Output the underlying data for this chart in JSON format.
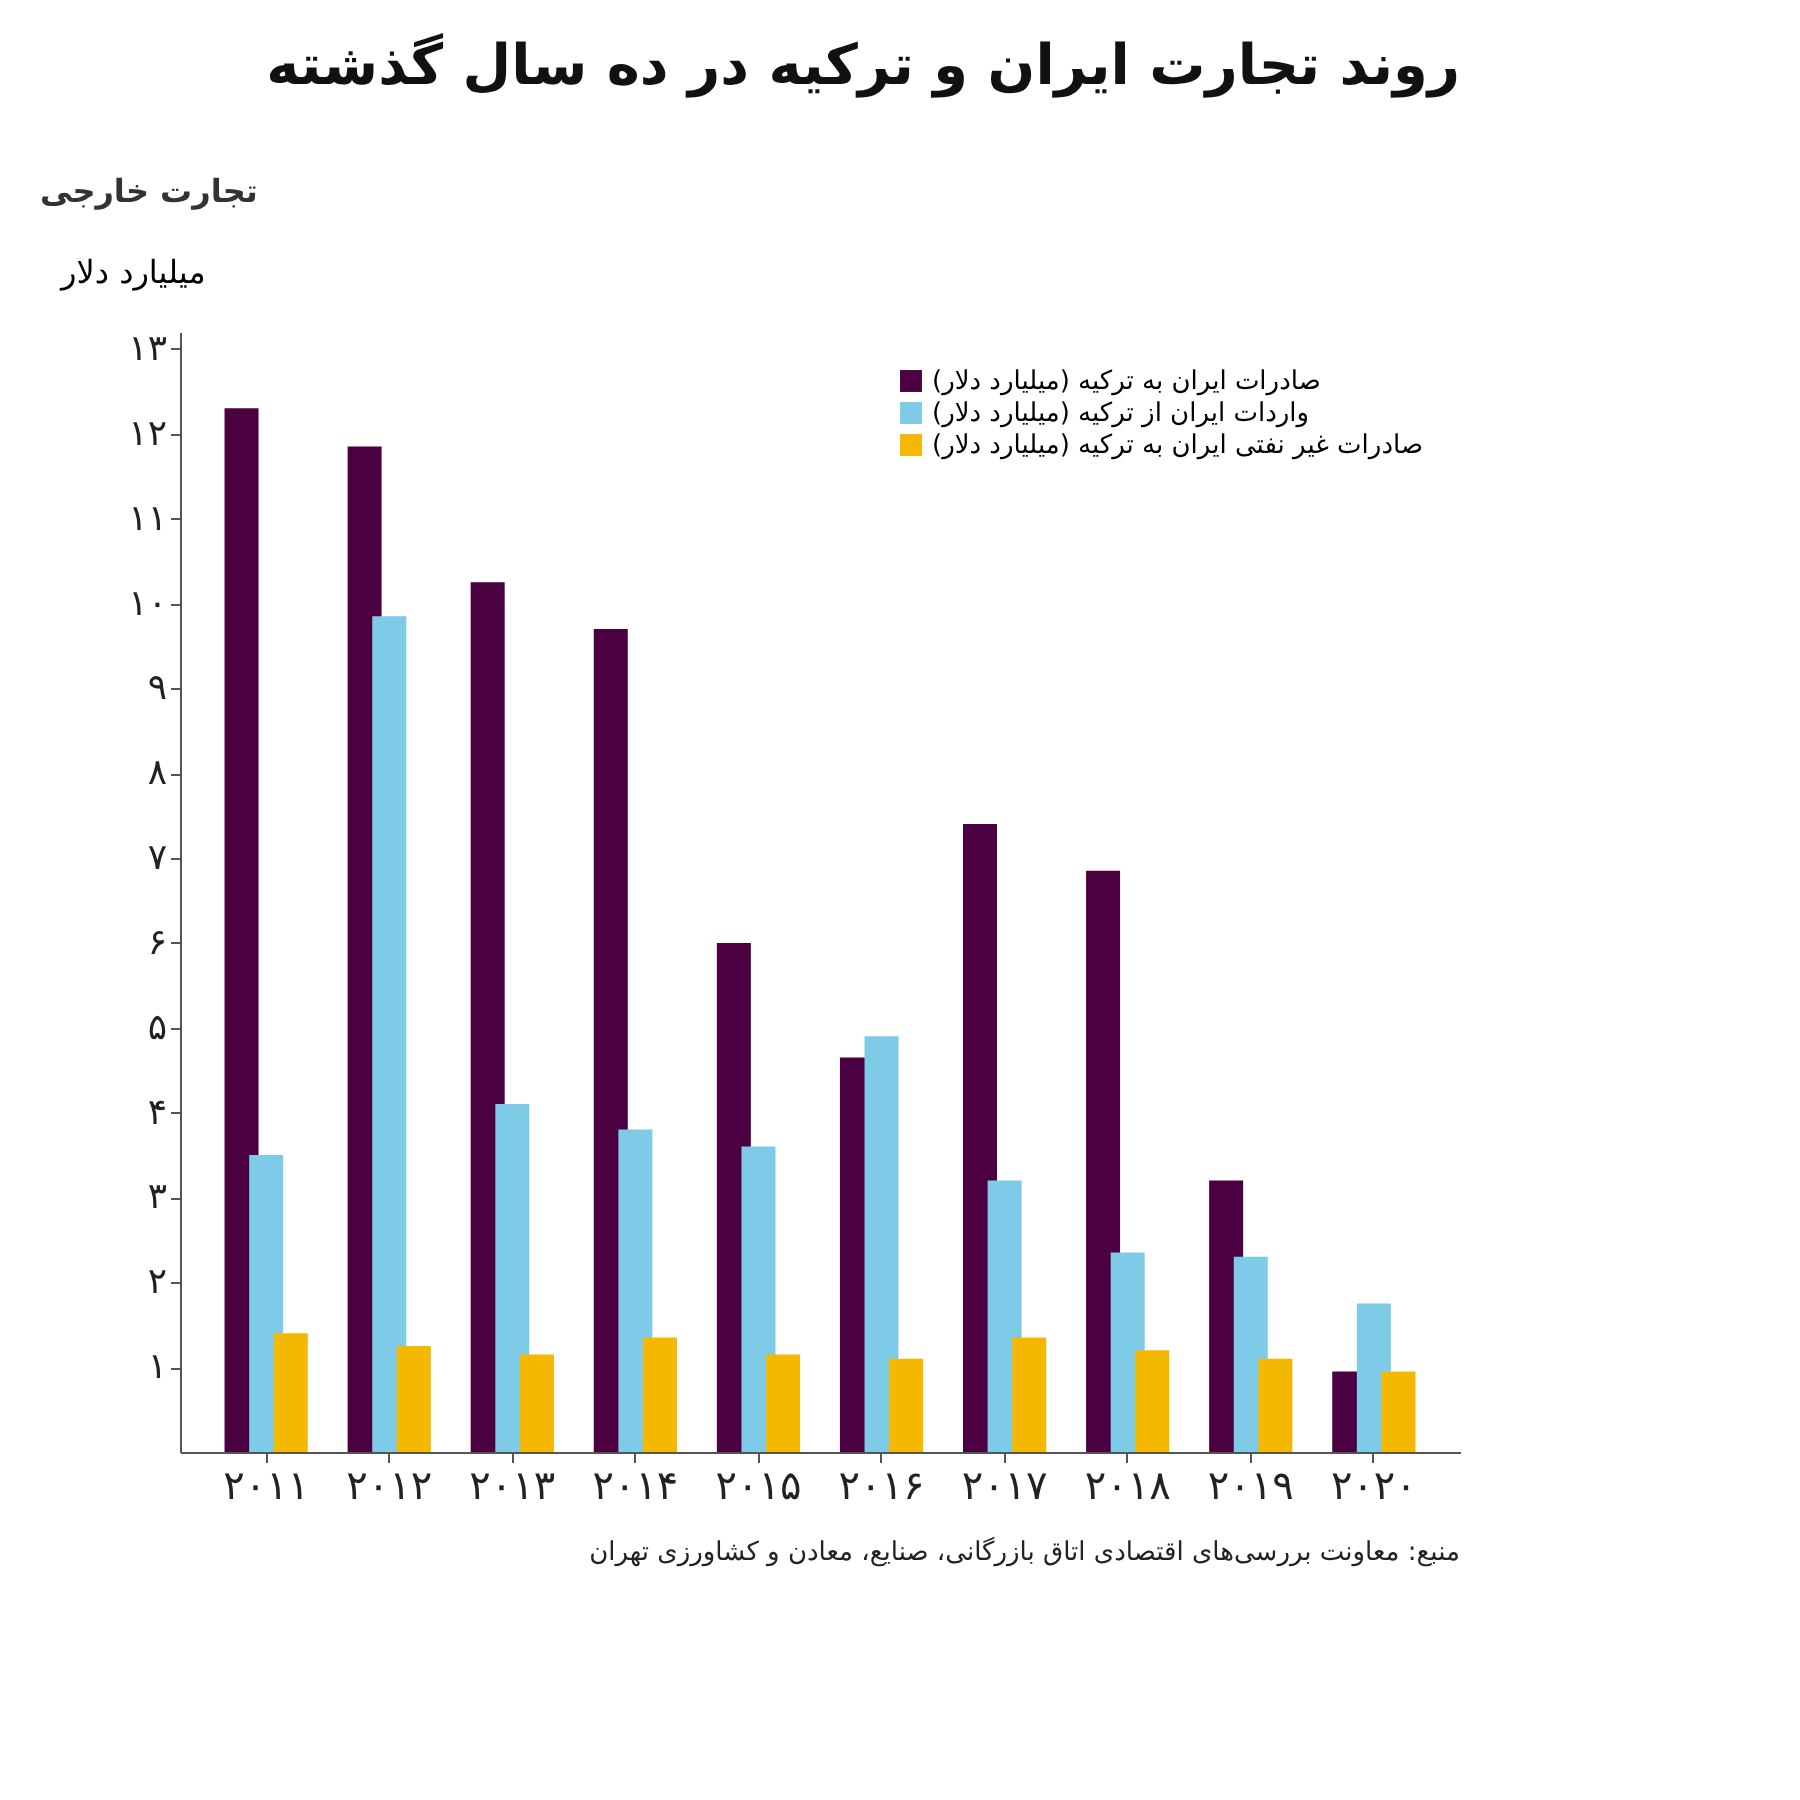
{
  "chart_data": {
    "type": "bar",
    "title": "روند تجارت ایران و ترکیه در ده سال گذشته",
    "ylabel": "میلیارد دلار",
    "categories": [
      "۲۰۱۱",
      "۲۰۱۲",
      "۲۰۱۳",
      "۲۰۱۴",
      "۲۰۱۵",
      "۲۰۱۶",
      "۲۰۱۷",
      "۲۰۱۸",
      "۲۰۱۹",
      "۲۰۲۰"
    ],
    "series": [
      {
        "name": "صادرات ایران به ترکیه (میلیارد دلار)",
        "color": "#4b0042",
        "values": [
          12.3,
          11.85,
          10.25,
          9.7,
          6.0,
          4.65,
          7.4,
          6.85,
          3.2,
          0.95
        ]
      },
      {
        "name": "واردات ایران از ترکیه (میلیارد دلار)",
        "color": "#7ecbe8",
        "values": [
          3.5,
          9.85,
          4.1,
          3.8,
          3.6,
          4.9,
          3.2,
          2.35,
          2.3,
          1.75
        ]
      },
      {
        "name": "صادرات غیر نفتی ایران به ترکیه (میلیارد دلار)",
        "color": "#f5b800",
        "values": [
          1.4,
          1.25,
          1.15,
          1.35,
          1.15,
          1.1,
          1.35,
          1.2,
          1.1,
          0.95
        ]
      }
    ],
    "ylim": [
      0,
      13.2
    ],
    "yticks": [
      {
        "value": 1,
        "label": "۱"
      },
      {
        "value": 2,
        "label": "۲"
      },
      {
        "value": 3,
        "label": "۳"
      },
      {
        "value": 4,
        "label": "۴"
      },
      {
        "value": 5,
        "label": "۵"
      },
      {
        "value": 6,
        "label": "۶"
      },
      {
        "value": 7,
        "label": "۷"
      },
      {
        "value": 8,
        "label": "۸"
      },
      {
        "value": 9,
        "label": "۹"
      },
      {
        "value": 10,
        "label": "۱۰"
      },
      {
        "value": 11,
        "label": "۱۱"
      },
      {
        "value": 12,
        "label": "۱۲"
      },
      {
        "value": 13,
        "label": "۱۳"
      }
    ],
    "grid": false,
    "legend": "top right",
    "annotations": [
      "تجارت خارجی",
      "منبع: معاونت بررسی‌های اقتصادی اتاق بازرگانی، صنایع، معادن و کشاورزی تهران"
    ]
  }
}
